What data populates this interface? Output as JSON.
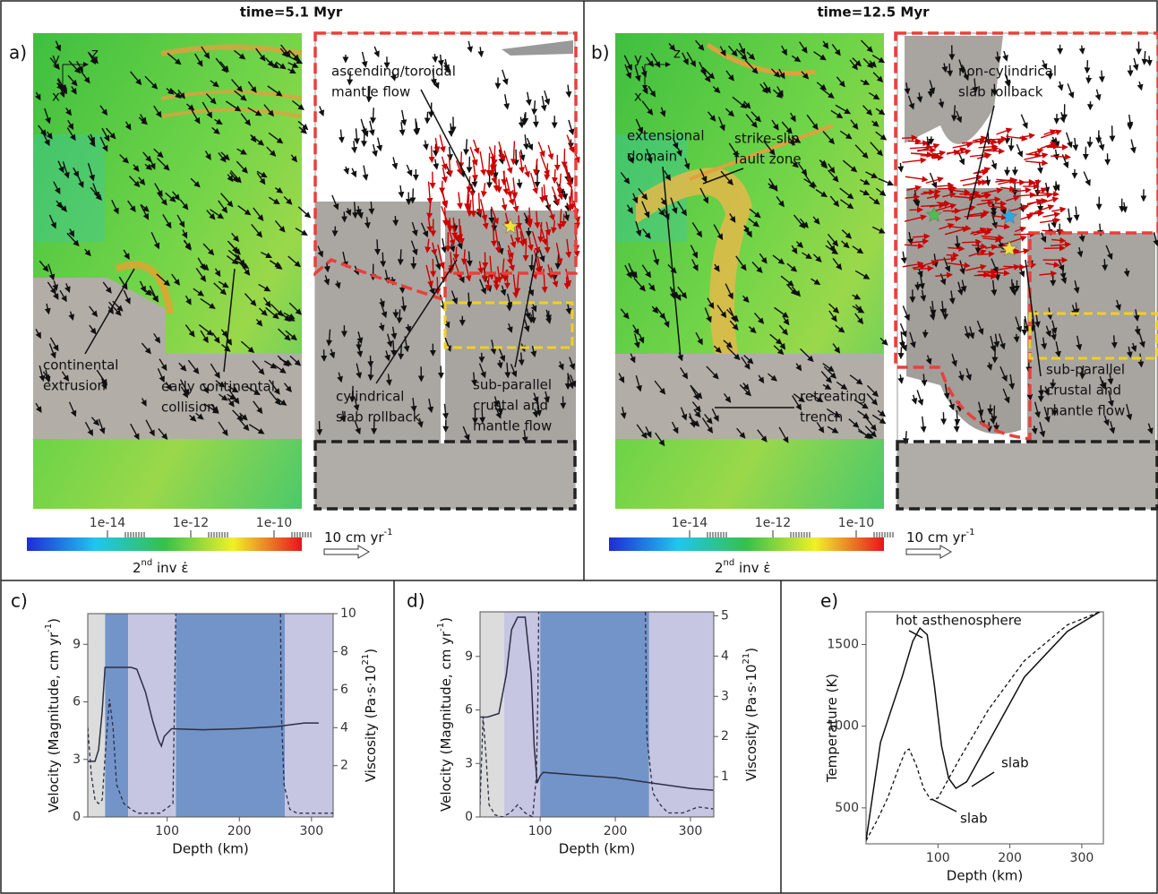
{
  "top_panels": [
    {
      "time": "time=5.1 Myr",
      "label": "a)",
      "axes": [
        "y",
        "x",
        "z"
      ],
      "annotations": [
        [
          "ascending/toroidal",
          "mantle flow"
        ],
        [
          "continental",
          "extrusion"
        ],
        [
          "early continental",
          "collision"
        ],
        [
          "cylindrical",
          "slab rollback"
        ],
        [
          "sub-parallel",
          "crustal and",
          "mantle flow"
        ]
      ],
      "colorbar": {
        "ticks": [
          "1e-14",
          "1e-12",
          "1e-10"
        ],
        "label": "2",
        "label_sup": "nd",
        "label_end": " inv ε̇"
      },
      "scale": {
        "text": "10 cm yr",
        "sup": "-1"
      }
    },
    {
      "time": "time=12.5 Myr",
      "label": "b)",
      "axes": [
        "y",
        "x",
        "z"
      ],
      "annotations": [
        [
          "strike-slip",
          "fault zone"
        ],
        [
          "extensional",
          "domain"
        ],
        [
          "non-cylindrical",
          "slab rollback"
        ],
        [
          "retreating",
          "trench"
        ],
        [
          "sub-parallel",
          "crustal and",
          "mantle flow"
        ]
      ],
      "colorbar": {
        "ticks": [
          "1e-14",
          "1e-12",
          "1e-10"
        ],
        "label": "2",
        "label_sup": "nd",
        "label_end": " inv ε̇"
      },
      "scale": {
        "text": "10 cm yr",
        "sup": "-1"
      }
    }
  ],
  "chart_data": [
    {
      "type": "line",
      "label": "c)",
      "xlabel": "Depth (km)",
      "ylabel": {
        "text": "Velocity (Magnitude, cm yr",
        "sup": "-1",
        "end": ")"
      },
      "y2label": {
        "text": "Viscosity (Pa·s·10",
        "sup": "21",
        "end": ")"
      },
      "xlim": [
        -10,
        330
      ],
      "xticks": [
        100,
        200,
        300
      ],
      "ylim": [
        0,
        10.6
      ],
      "yticks": [
        0,
        3,
        6,
        9
      ],
      "y2lim": [
        -0.7,
        10
      ],
      "y2ticks": [
        2,
        4,
        6,
        8,
        10
      ],
      "bands": [
        {
          "from": -10,
          "to": 14,
          "color": "#dcdcdc"
        },
        {
          "from": 14,
          "to": 46,
          "color": "#7394c8"
        },
        {
          "from": 46,
          "to": 112,
          "color": "#c6c6e2"
        },
        {
          "from": 112,
          "to": 263,
          "color": "#7394c8"
        },
        {
          "from": 263,
          "to": 330,
          "color": "#c6c6e2"
        }
      ],
      "series": [
        {
          "style": "solid",
          "color": "#2b2f45",
          "axis": "y",
          "x": [
            -10,
            0,
            5,
            10,
            14,
            30,
            50,
            58,
            70,
            80,
            88,
            92,
            96,
            106,
            150,
            200,
            250,
            290,
            310
          ],
          "values": [
            2.9,
            2.9,
            3.5,
            5.5,
            7.8,
            7.8,
            7.8,
            7.7,
            6.5,
            5.0,
            4.0,
            3.7,
            4.2,
            4.6,
            4.55,
            4.6,
            4.7,
            4.9,
            4.9
          ]
        },
        {
          "style": "dashed",
          "color": "#2b2f45",
          "axis": "y2",
          "x": [
            -10,
            -5,
            0,
            5,
            10,
            15,
            20,
            25,
            30,
            40,
            50,
            60,
            90,
            108,
            110,
            112,
            null,
            257,
            258,
            262,
            270,
            280,
            290,
            310,
            330
          ],
          "values": [
            4.0,
            1.5,
            0.2,
            0.0,
            0.2,
            3,
            5.5,
            4,
            1,
            0,
            -0.3,
            -0.5,
            -0.5,
            0,
            5,
            10,
            null,
            10,
            5,
            1,
            -0.3,
            -0.5,
            -0.5,
            -0.5,
            -0.5
          ]
        }
      ]
    },
    {
      "type": "line",
      "label": "d)",
      "xlabel": "Depth (km)",
      "ylabel": {
        "text": "Velocity (Magnitude, cm yr",
        "sup": "-1",
        "end": ")"
      },
      "y2label": {
        "text": "Viscosity (Pa·s·10",
        "sup": "21",
        "end": ")"
      },
      "xlim": [
        20,
        331
      ],
      "xticks": [
        100,
        200,
        300
      ],
      "ylim": [
        0,
        11.5
      ],
      "yticks": [
        0,
        3,
        6,
        9
      ],
      "y2lim": [
        0,
        5.1
      ],
      "y2ticks": [
        1,
        2,
        3,
        4,
        5
      ],
      "bands": [
        {
          "from": 20,
          "to": 52,
          "color": "#dcdcdc"
        },
        {
          "from": 52,
          "to": 100,
          "color": "#c6c6e2"
        },
        {
          "from": 100,
          "to": 245,
          "color": "#7394c8"
        },
        {
          "from": 245,
          "to": 331,
          "color": "#c6c6e2"
        }
      ],
      "series": [
        {
          "style": "solid",
          "color": "#2b2f45",
          "axis": "y",
          "x": [
            20,
            30,
            45,
            55,
            62,
            70,
            80,
            88,
            92,
            96,
            100,
            104,
            150,
            200,
            250,
            300,
            330
          ],
          "values": [
            5.6,
            5.6,
            5.8,
            8,
            10.5,
            11.2,
            11.2,
            8,
            4,
            1.9,
            2.3,
            2.5,
            2.35,
            2.2,
            1.9,
            1.6,
            1.5
          ]
        },
        {
          "style": "dashed",
          "color": "#2b2f45",
          "axis": "y2",
          "x": [
            20,
            24,
            28,
            32,
            40,
            50,
            60,
            70,
            80,
            90,
            95,
            97,
            98,
            null,
            240,
            242,
            250,
            260,
            270,
            290,
            310,
            330
          ],
          "values": [
            0.3,
            2.5,
            1.5,
            0.3,
            0.05,
            0,
            0.1,
            0.3,
            0.1,
            0,
            1,
            3,
            5.1,
            null,
            5.1,
            2,
            0.6,
            0.3,
            0.1,
            0.1,
            0.25,
            0.2
          ]
        }
      ]
    },
    {
      "type": "line",
      "label": "e)",
      "xlabel": "Depth (km)",
      "ylabel": {
        "text": "Temperature (K)"
      },
      "xlim": [
        0,
        330
      ],
      "xticks": [
        100,
        200,
        300
      ],
      "ylim": [
        280,
        1700
      ],
      "yticks": [
        500,
        1000,
        1500
      ],
      "annotations": [
        "hot asthenosphere",
        "slab",
        "slab"
      ],
      "series": [
        {
          "style": "solid",
          "color": "#111111",
          "axis": "y",
          "x": [
            0,
            10,
            20,
            35,
            50,
            65,
            75,
            85,
            95,
            105,
            115,
            125,
            140,
            170,
            220,
            280,
            325
          ],
          "values": [
            300,
            600,
            900,
            1100,
            1300,
            1520,
            1600,
            1560,
            1250,
            880,
            680,
            620,
            660,
            900,
            1300,
            1580,
            1700
          ]
        },
        {
          "style": "dashed",
          "color": "#111111",
          "axis": "y",
          "x": [
            0,
            15,
            30,
            45,
            55,
            60,
            70,
            80,
            90,
            100,
            130,
            170,
            220,
            280,
            325
          ],
          "values": [
            300,
            420,
            560,
            740,
            850,
            860,
            760,
            620,
            550,
            560,
            800,
            1100,
            1400,
            1620,
            1700
          ]
        }
      ]
    }
  ]
}
